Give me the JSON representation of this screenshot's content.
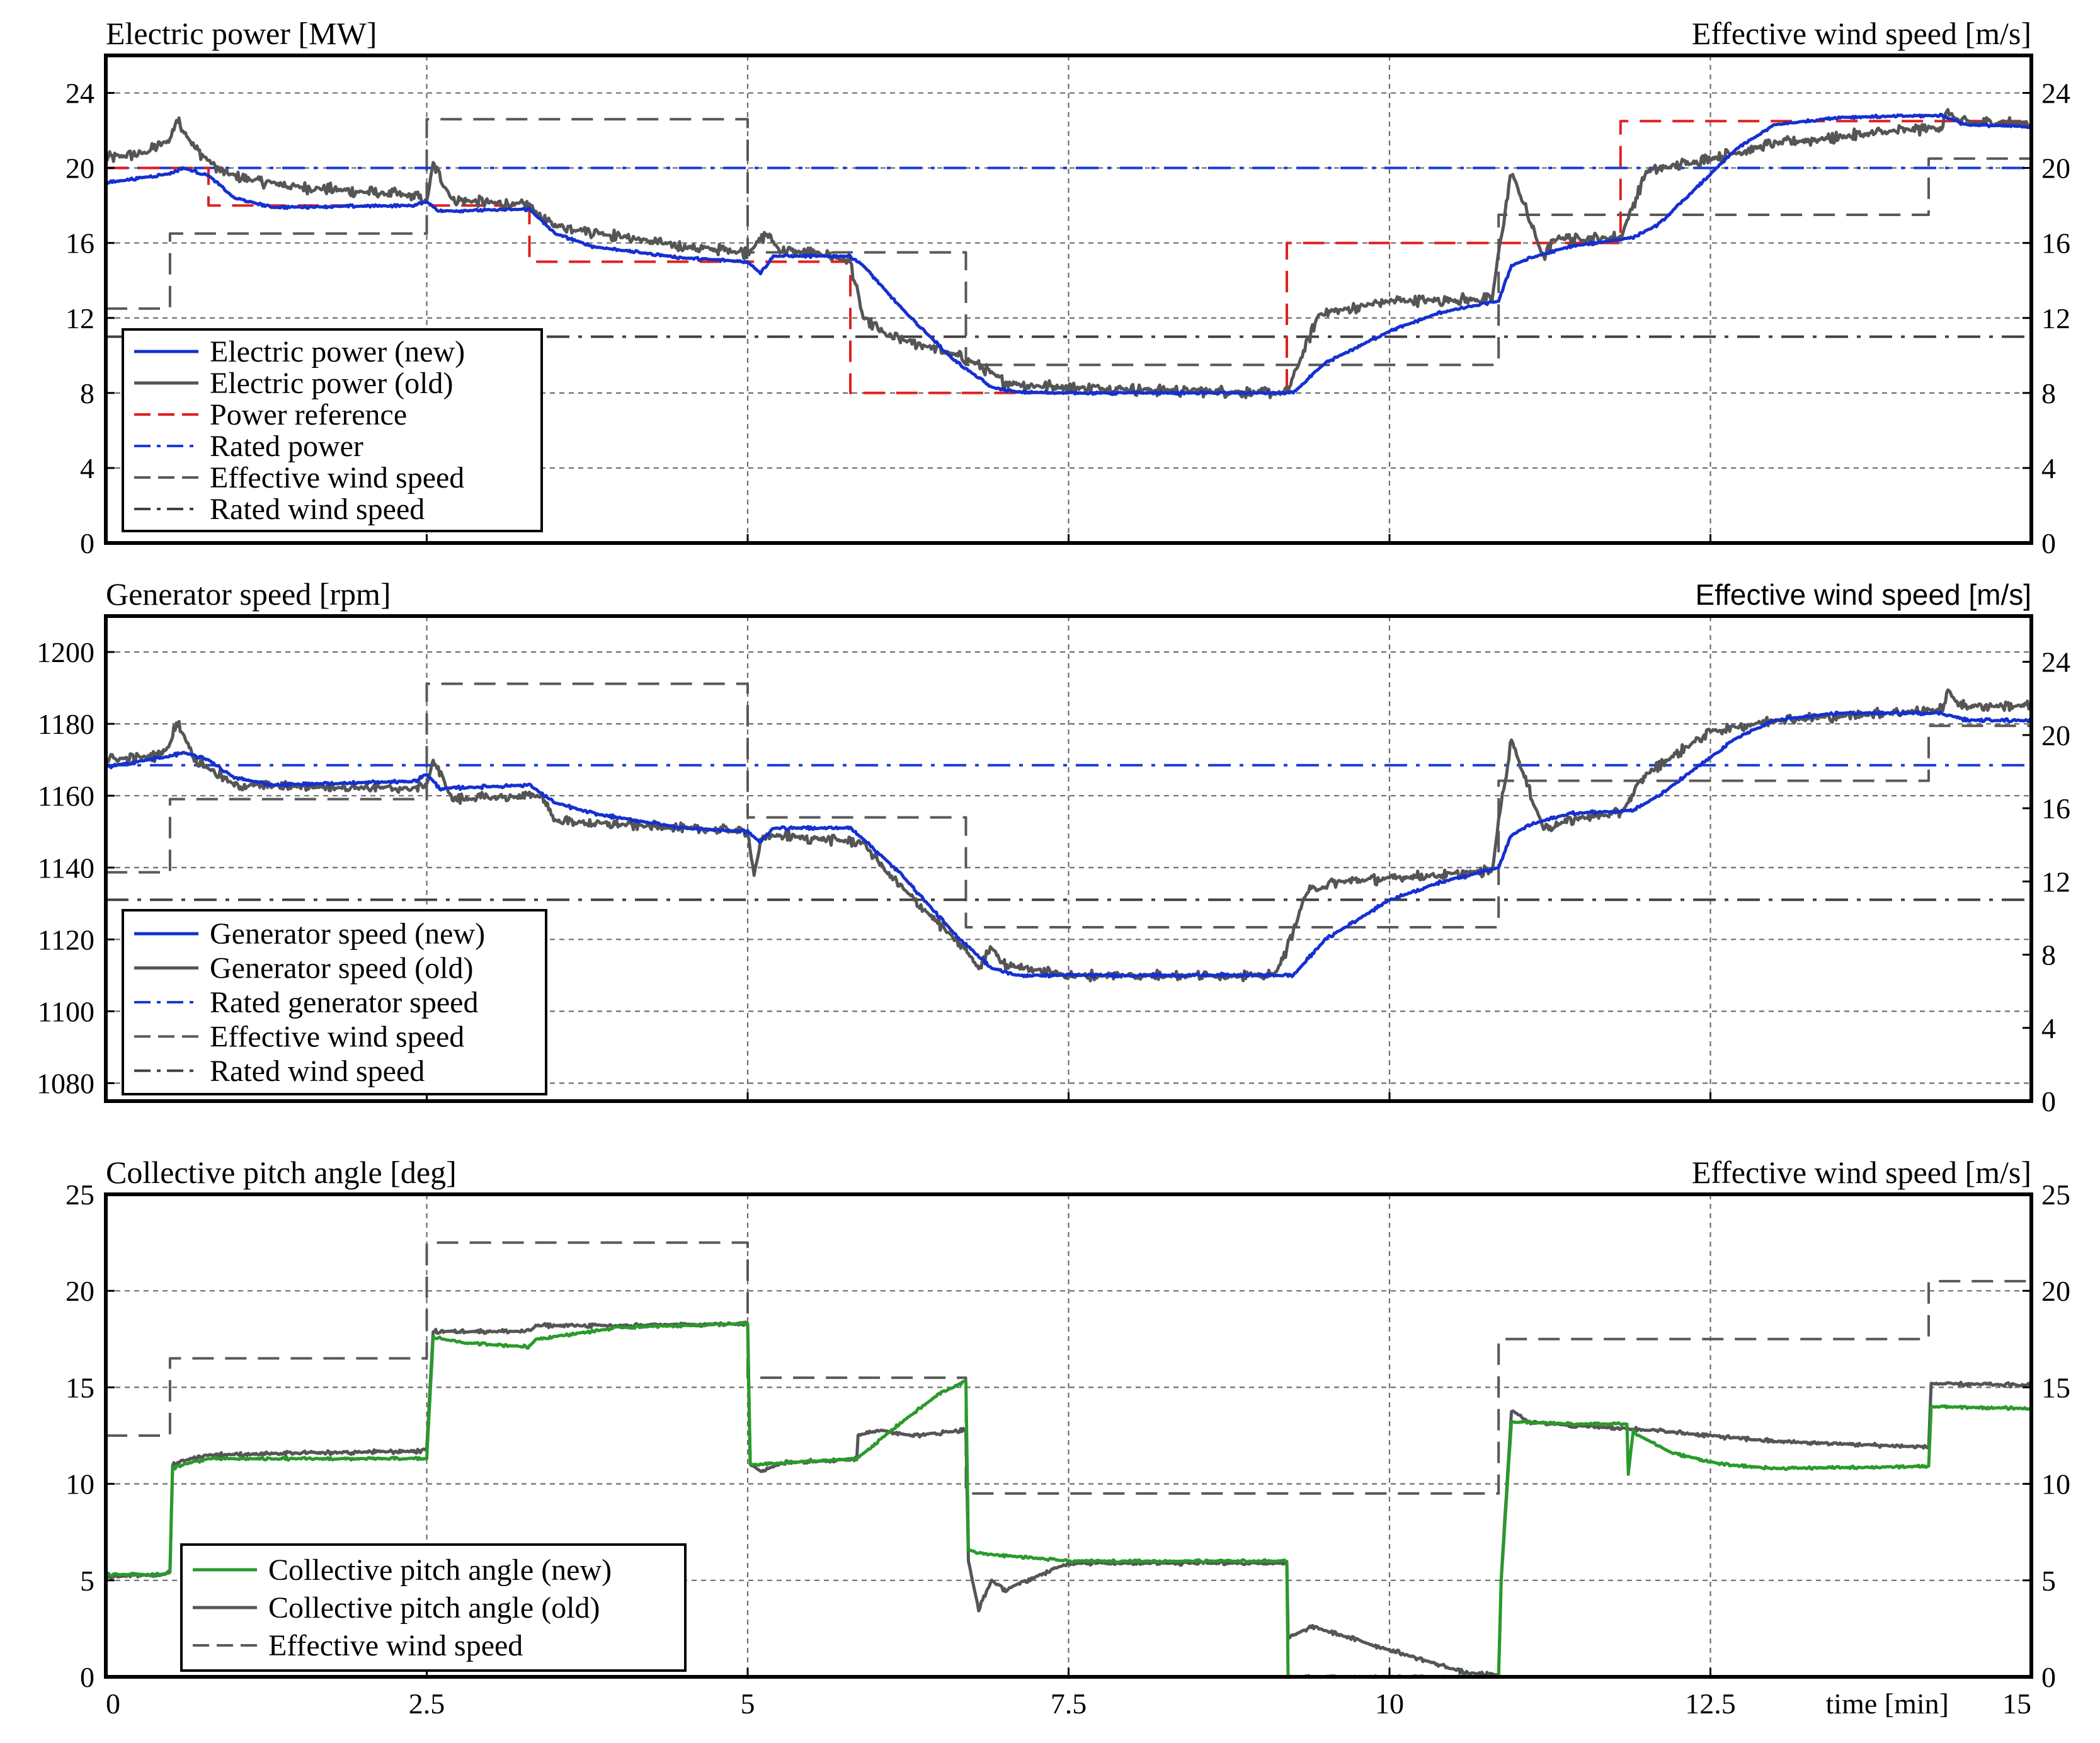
{
  "chart_data": [
    {
      "type": "line",
      "title_left": "Electric power [MW]",
      "title_right": "Effective wind speed [m/s]",
      "title_right_font": "serif",
      "xlim": [
        0,
        15
      ],
      "ylim": [
        0,
        26
      ],
      "y2lim": [
        0,
        26
      ],
      "yticks": [
        0,
        4,
        8,
        12,
        16,
        20,
        24
      ],
      "y2ticks": [
        0,
        4,
        8,
        12,
        16,
        20,
        24
      ],
      "xticks": [
        0,
        2.5,
        5,
        7.5,
        10,
        12.5,
        15
      ],
      "show_xtick_labels": false,
      "legend_position": "bottom-left",
      "series": [
        {
          "name": "Effective wind speed",
          "axis": "right",
          "color": "#595959",
          "dash": "dash",
          "noise": 0,
          "x": [
            0,
            0.5,
            0.5,
            2.5,
            2.5,
            5,
            5,
            6.7,
            6.7,
            10.85,
            10.85,
            14.2,
            14.2,
            15
          ],
          "y": [
            12.5,
            12.5,
            16.5,
            16.5,
            22.6,
            22.6,
            15.5,
            15.5,
            9.5,
            9.5,
            17.5,
            17.5,
            20.5,
            20.5
          ]
        },
        {
          "name": "Rated wind speed",
          "axis": "right",
          "color": "#404040",
          "dash": "dashdot",
          "noise": 0,
          "x": [
            0,
            15
          ],
          "y": [
            11,
            11
          ]
        },
        {
          "name": "Rated power",
          "axis": "left",
          "color": "#1a3bd6",
          "dash": "dashdot",
          "noise": 0,
          "x": [
            0,
            15
          ],
          "y": [
            20,
            20
          ]
        },
        {
          "name": "Power reference",
          "axis": "left",
          "color": "#e02020",
          "dash": "dash",
          "noise": 0,
          "x": [
            0,
            0.8,
            0.8,
            2.5,
            2.5,
            3.3,
            3.3,
            5.8,
            5.8,
            9.2,
            9.2,
            11.8,
            11.8,
            15
          ],
          "y": [
            20,
            20,
            18,
            18,
            18,
            18,
            15,
            15,
            8,
            8,
            16,
            16,
            22.5,
            22.5
          ]
        },
        {
          "name": "Electric power (old)",
          "axis": "left",
          "color": "#555555",
          "dash": "solid",
          "noise": 0.35,
          "x": [
            0,
            0.3,
            0.5,
            0.55,
            0.7,
            0.9,
            1.1,
            1.5,
            2.4,
            2.5,
            2.55,
            2.7,
            3.3,
            3.45,
            4.5,
            5,
            5.15,
            5.25,
            5.6,
            5.8,
            5.9,
            6.1,
            6.4,
            6.7,
            6.8,
            7.0,
            7.2,
            7.5,
            9.1,
            9.2,
            9.45,
            10.0,
            10.8,
            10.85,
            10.95,
            11.05,
            11.2,
            11.3,
            11.5,
            11.8,
            12.0,
            12.5,
            13.0,
            14.3,
            14.35,
            14.45,
            15
          ],
          "y": [
            20.5,
            20.8,
            21.5,
            22.6,
            21.0,
            19.8,
            19.4,
            19.0,
            18.5,
            18.2,
            20.2,
            18.3,
            18.0,
            17.0,
            15.8,
            15.5,
            16.5,
            15.6,
            15.4,
            15.0,
            12.0,
            11.0,
            10.5,
            9.8,
            9.5,
            8.6,
            8.4,
            8.3,
            8.0,
            8.0,
            12.2,
            12.9,
            13.0,
            15.5,
            19.8,
            18.0,
            15.2,
            16.3,
            16.2,
            16.3,
            19.8,
            20.5,
            21.3,
            22.2,
            23.0,
            22.4,
            22.4
          ]
        },
        {
          "name": "Electric power (new)",
          "axis": "left",
          "color": "#1530d0",
          "dash": "solid",
          "noise": 0.08,
          "x": [
            0,
            0.5,
            0.6,
            0.8,
            1.0,
            1.3,
            2.4,
            2.5,
            2.6,
            3.3,
            3.5,
            3.8,
            4.5,
            5.0,
            5.1,
            5.2,
            5.8,
            5.9,
            6.2,
            6.6,
            6.9,
            7.1,
            7.5,
            9.25,
            9.5,
            10.0,
            10.4,
            10.85,
            10.95,
            11.1,
            11.4,
            11.9,
            12.1,
            12.4,
            12.7,
            13.0,
            13.5,
            14.3,
            14.5,
            15
          ],
          "y": [
            19.2,
            19.7,
            20.0,
            19.6,
            18.4,
            17.9,
            18.0,
            18.2,
            17.7,
            17.8,
            16.5,
            15.8,
            15.2,
            15.0,
            14.4,
            15.3,
            15.3,
            14.8,
            12.5,
            9.8,
            8.3,
            8.05,
            8.0,
            8.0,
            9.6,
            11.3,
            12.3,
            12.9,
            14.8,
            15.2,
            15.8,
            16.3,
            17.0,
            19.0,
            21.0,
            22.3,
            22.7,
            22.8,
            22.3,
            22.2
          ]
        }
      ],
      "legend": [
        {
          "name": "Electric power (new)",
          "color": "#1530d0",
          "dash": "solid"
        },
        {
          "name": "Electric power (old)",
          "color": "#555555",
          "dash": "solid"
        },
        {
          "name": "Power reference",
          "color": "#e02020",
          "dash": "dash"
        },
        {
          "name": "Rated power",
          "color": "#1a3bd6",
          "dash": "dashdot"
        },
        {
          "name": "Effective wind speed",
          "color": "#595959",
          "dash": "dash"
        },
        {
          "name": "Rated wind speed",
          "color": "#404040",
          "dash": "dashdot"
        }
      ]
    },
    {
      "type": "line",
      "title_left": "Generator speed [rpm]",
      "title_right": "Effective wind speed [m/s]",
      "title_right_font": "sans",
      "xlim": [
        0,
        15
      ],
      "ylim": [
        1075,
        1210
      ],
      "y2lim": [
        0,
        26.5
      ],
      "yticks": [
        1080,
        1100,
        1120,
        1140,
        1160,
        1180,
        1200
      ],
      "y2ticks": [
        0,
        4,
        8,
        12,
        16,
        20,
        24
      ],
      "xticks": [
        0,
        2.5,
        5,
        7.5,
        10,
        12.5,
        15
      ],
      "show_xtick_labels": false,
      "legend_position": "bottom-left",
      "series": [
        {
          "name": "Effective wind speed",
          "axis": "right",
          "color": "#595959",
          "dash": "dash",
          "noise": 0,
          "x": [
            0,
            0.5,
            0.5,
            2.5,
            2.5,
            5,
            5,
            6.7,
            6.7,
            10.85,
            10.85,
            14.2,
            14.2,
            15
          ],
          "y": [
            12.5,
            12.5,
            16.5,
            16.5,
            22.8,
            22.8,
            15.5,
            15.5,
            9.5,
            9.5,
            17.5,
            17.5,
            20.5,
            20.5
          ]
        },
        {
          "name": "Rated wind speed",
          "axis": "right",
          "color": "#404040",
          "dash": "dashdot",
          "noise": 0,
          "x": [
            0,
            15
          ],
          "y": [
            11,
            11
          ]
        },
        {
          "name": "Rated generator speed",
          "axis": "left",
          "color": "#1a3bd6",
          "dash": "dashdot",
          "noise": 0,
          "x": [
            0,
            15
          ],
          "y": [
            1168.5,
            1168.5
          ]
        },
        {
          "name": "Generator speed (old)",
          "axis": "left",
          "color": "#555555",
          "dash": "solid",
          "noise": 1.6,
          "x": [
            0,
            0.4,
            0.5,
            0.55,
            0.7,
            1.0,
            2.4,
            2.5,
            2.55,
            2.7,
            3.4,
            3.5,
            4.5,
            5.0,
            5.05,
            5.1,
            5.2,
            5.9,
            6.1,
            6.5,
            6.7,
            6.8,
            6.9,
            7.0,
            7.5,
            9.1,
            9.2,
            9.35,
            9.6,
            10.0,
            10.8,
            10.85,
            10.95,
            11.05,
            11.2,
            11.5,
            11.8,
            12.0,
            12.5,
            13.0,
            14.3,
            14.35,
            14.45,
            15
          ],
          "y": [
            1170,
            1171,
            1174,
            1181,
            1170,
            1163,
            1162,
            1163,
            1170,
            1159,
            1160,
            1153,
            1151,
            1150,
            1138,
            1147,
            1149,
            1147,
            1138,
            1124,
            1117,
            1112,
            1118,
            1113,
            1110,
            1110,
            1117,
            1133,
            1136,
            1137,
            1139,
            1153,
            1176,
            1165,
            1151,
            1154,
            1155,
            1166,
            1178,
            1181,
            1184,
            1189,
            1185,
            1185
          ]
        },
        {
          "name": "Generator speed (new)",
          "axis": "left",
          "color": "#1530d0",
          "dash": "solid",
          "noise": 0.5,
          "x": [
            0,
            0.5,
            0.6,
            0.8,
            1.0,
            1.3,
            2.4,
            2.5,
            2.6,
            3.3,
            3.5,
            3.8,
            4.5,
            5.0,
            5.1,
            5.2,
            5.8,
            5.9,
            6.2,
            6.6,
            6.9,
            7.1,
            7.5,
            9.25,
            9.5,
            10.0,
            10.4,
            10.85,
            10.95,
            11.1,
            11.4,
            11.9,
            12.1,
            12.4,
            12.7,
            13.0,
            13.5,
            14.3,
            14.5,
            15
          ],
          "y": [
            1168,
            1171,
            1172,
            1170,
            1165,
            1163,
            1164,
            1166,
            1162,
            1163,
            1158,
            1155,
            1151,
            1150,
            1147,
            1151,
            1151,
            1148,
            1138,
            1122,
            1112,
            1110,
            1110,
            1110,
            1120,
            1131,
            1136,
            1140,
            1149,
            1152,
            1155,
            1156,
            1160,
            1168,
            1176,
            1181,
            1183,
            1183,
            1181,
            1181
          ]
        }
      ],
      "legend": [
        {
          "name": "Generator speed (new)",
          "color": "#1530d0",
          "dash": "solid"
        },
        {
          "name": "Generator speed (old)",
          "color": "#555555",
          "dash": "solid"
        },
        {
          "name": "Rated generator speed",
          "color": "#1a3bd6",
          "dash": "dashdot"
        },
        {
          "name": "Effective wind speed",
          "color": "#595959",
          "dash": "dash"
        },
        {
          "name": "Rated wind speed",
          "color": "#404040",
          "dash": "dashdot"
        }
      ]
    },
    {
      "type": "line",
      "title_left": "Collective pitch angle [deg]",
      "title_right": "Effective wind speed [m/s]",
      "title_right_font": "serif",
      "xlim": [
        0,
        15
      ],
      "ylim": [
        0,
        25
      ],
      "y2lim": [
        0,
        25
      ],
      "yticks": [
        0,
        5,
        10,
        15,
        20,
        25
      ],
      "y2ticks": [
        0,
        5,
        10,
        15,
        20,
        25
      ],
      "xticks": [
        0,
        2.5,
        5,
        7.5,
        10,
        12.5,
        15
      ],
      "xticklabels": [
        "0",
        "2.5",
        "5",
        "7.5",
        "10",
        "12.5",
        "15"
      ],
      "show_xtick_labels": true,
      "xlabel": "time [min]",
      "legend_position": "bottom-left",
      "series": [
        {
          "name": "Effective wind speed",
          "axis": "right",
          "color": "#595959",
          "dash": "dash",
          "noise": 0,
          "x": [
            0,
            0.5,
            0.5,
            2.5,
            2.5,
            5,
            5,
            6.7,
            6.7,
            10.85,
            10.85,
            14.2,
            14.2,
            15
          ],
          "y": [
            12.5,
            12.5,
            16.5,
            16.5,
            22.5,
            22.5,
            15.5,
            15.5,
            9.5,
            9.5,
            17.5,
            17.5,
            20.5,
            20.5
          ]
        },
        {
          "name": "Collective pitch angle (old)",
          "axis": "left",
          "color": "#555555",
          "dash": "solid",
          "noise": 0.12,
          "x": [
            0,
            0.45,
            0.5,
            0.52,
            0.6,
            0.8,
            2.45,
            2.5,
            2.55,
            3.3,
            3.35,
            4.0,
            5.0,
            5.02,
            5.1,
            5.3,
            5.85,
            5.86,
            6.0,
            6.3,
            6.7,
            6.72,
            6.75,
            6.8,
            6.9,
            7.0,
            7.5,
            9.2,
            9.21,
            9.3,
            9.4,
            10.6,
            10.85,
            10.87,
            10.95,
            11.1,
            11.5,
            12.0,
            13.0,
            14.2,
            14.22,
            15
          ],
          "y": [
            5.2,
            5.3,
            5.5,
            11.0,
            11.2,
            11.5,
            11.7,
            11.8,
            17.9,
            17.9,
            18.2,
            18.2,
            18.3,
            11.0,
            10.7,
            11.1,
            11.3,
            12.5,
            12.8,
            12.5,
            12.8,
            6.0,
            5.0,
            3.5,
            5.0,
            4.5,
            5.9,
            5.9,
            2.0,
            2.3,
            2.6,
            0.2,
            0.1,
            5.0,
            13.8,
            13.2,
            13.0,
            12.8,
            12.2,
            11.9,
            15.2,
            15.1
          ]
        },
        {
          "name": "Collective pitch angle (new)",
          "axis": "left",
          "color": "#2a9a2a",
          "dash": "solid",
          "noise": 0.08,
          "x": [
            0,
            0.45,
            0.5,
            0.52,
            0.6,
            0.8,
            2.45,
            2.5,
            2.55,
            2.8,
            3.3,
            3.35,
            4.0,
            5.0,
            5.02,
            5.1,
            5.3,
            5.85,
            6.2,
            6.5,
            6.7,
            6.72,
            6.8,
            7.5,
            9.2,
            9.21,
            10.85,
            10.87,
            10.95,
            11.5,
            11.85,
            11.86,
            11.9,
            11.92,
            12.2,
            12.6,
            13.0,
            14.2,
            14.22,
            15
          ],
          "y": [
            5.3,
            5.3,
            5.4,
            10.8,
            11.0,
            11.3,
            11.3,
            11.3,
            17.6,
            17.3,
            17.1,
            17.5,
            18.1,
            18.3,
            11.0,
            11.0,
            11.1,
            11.3,
            13.2,
            14.7,
            15.3,
            6.6,
            6.4,
            6.0,
            6.0,
            0,
            0,
            5.0,
            13.2,
            13.1,
            13.1,
            10.5,
            12.8,
            12.6,
            11.6,
            11.0,
            10.8,
            10.9,
            14.0,
            13.9
          ]
        }
      ],
      "legend": [
        {
          "name": "Collective pitch angle (new)",
          "color": "#2a9a2a",
          "dash": "solid"
        },
        {
          "name": "Collective pitch angle (old)",
          "color": "#555555",
          "dash": "solid"
        },
        {
          "name": "Effective wind speed",
          "color": "#595959",
          "dash": "dash"
        }
      ]
    }
  ]
}
